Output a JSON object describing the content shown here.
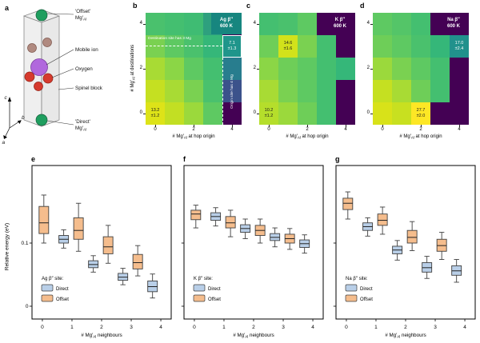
{
  "panel_a": {
    "letter": "a",
    "labels": {
      "offset_line1": "'Offset'",
      "direct_line1": "'Direct'",
      "mg_pre": "Mg′",
      "mg_sub": "Al",
      "mobile": "Mobile ion",
      "oxygen": "Oxygen",
      "spinel": "Spinel block"
    },
    "axis_labels": {
      "a": "a",
      "b": "b",
      "c": "c"
    },
    "colors": {
      "mg_al": "#1f9e5f",
      "mobile_ion": "#b168dd",
      "oxygen": "#d63a2e",
      "site": "#b08a80"
    }
  },
  "heatmap_axes": {
    "ylabel_pre": "# Mg′",
    "ylabel_sub": "Al",
    "ylabel_post": " at destinations",
    "xlabel_pre": "# Mg′",
    "xlabel_sub": "Al",
    "xlabel_post": " at hop origin",
    "xticks": [
      "0",
      "2",
      "4"
    ],
    "yticks": [
      "0",
      "2",
      "4"
    ]
  },
  "box_axes": {
    "ylabel": "Relative energy (eV)",
    "yticks": [
      {
        "value": 0,
        "label": "0"
      },
      {
        "value": 0.1,
        "label": "0.1"
      }
    ],
    "xticks": [
      "0",
      "1",
      "2",
      "3",
      "4"
    ],
    "xlabel_pre": "# Mg′",
    "xlabel_sub": "Al",
    "xlabel_post": " neighbours"
  },
  "legend": {
    "direct": "Direct",
    "offset": "Offset"
  },
  "colors": {
    "direct_fill": "#b9cfe8",
    "offset_fill": "#f5bd8d",
    "box_stroke": "#3f3f3f",
    "median": "#222222"
  },
  "chart_data": [
    {
      "type": "heatmap",
      "panel": "b",
      "badge_line1": "Ag β″",
      "badge_line2": "600 K",
      "badge_bg": "#17867f",
      "x_range": [
        0,
        4
      ],
      "y_range": [
        0,
        4
      ],
      "grid_colors": [
        [
          "#4ac16d",
          "#44bf70",
          "#3fbc73",
          "#2ea07e",
          "#440154"
        ],
        [
          "#7ad151",
          "#5ec962",
          "#4ac16d",
          "#35b779",
          "#1f958b"
        ],
        [
          "#a8db34",
          "#8bd646",
          "#5ec962",
          "#44bf70",
          "#287d8e"
        ],
        [
          "#c5e021",
          "#a8db34",
          "#7ad151",
          "#4ac16d",
          "#3b528b"
        ],
        [
          "#dde318",
          "#c2df23",
          "#9bd93c",
          "#5ec962",
          "#440154"
        ]
      ],
      "annotations": {
        "dest_label": "Destination site has 3 Mg",
        "origin_label": "Origin site has 4 Mg",
        "cells": [
          {
            "col": 4,
            "row": 3,
            "value": "7.1",
            "err": "±1.3",
            "text_color": "#ffffff",
            "highlight": true
          },
          {
            "col": 0,
            "row": 0,
            "value": "13.2",
            "err": "±1.2",
            "text_color": "#1a1a1a",
            "highlight": false
          }
        ]
      }
    },
    {
      "type": "heatmap",
      "panel": "c",
      "badge_line1": "K β″",
      "badge_line2": "600 K",
      "badge_bg": "#440154",
      "x_range": [
        0,
        4
      ],
      "y_range": [
        0,
        4
      ],
      "grid_colors": [
        [
          "#44bf70",
          "#4ac16d",
          "#5ec962",
          "#440154",
          "#440154"
        ],
        [
          "#6ece58",
          "#d2e21b",
          "#7ad151",
          "#44bf70",
          "#440154"
        ],
        [
          "#8bd646",
          "#6ece58",
          "#5ec962",
          "#44bf70",
          "#35b779"
        ],
        [
          "#a8db34",
          "#7ad151",
          "#5ec962",
          "#44bf70",
          "#440154"
        ],
        [
          "#b5de2b",
          "#9bd93c",
          "#6ece58",
          "#44bf70",
          "#440154"
        ]
      ],
      "annotations": {
        "cells": [
          {
            "col": 1,
            "row": 3,
            "value": "14.6",
            "err": "±1.6",
            "text_color": "#1a1a1a",
            "highlight": false
          },
          {
            "col": 0,
            "row": 0,
            "value": "10.2",
            "err": "±1.2",
            "text_color": "#1a1a1a",
            "highlight": false
          }
        ]
      }
    },
    {
      "type": "heatmap",
      "panel": "d",
      "badge_line1": "Na β″",
      "badge_line2": "600 K",
      "badge_bg": "#440154",
      "x_range": [
        0,
        4
      ],
      "y_range": [
        0,
        4
      ],
      "grid_colors": [
        [
          "#5ec962",
          "#54c568",
          "#44bf70",
          "#440154",
          "#440154"
        ],
        [
          "#6ece58",
          "#5ec962",
          "#4ac16d",
          "#35b779",
          "#21918c"
        ],
        [
          "#9bd93c",
          "#7ad151",
          "#5ec962",
          "#44bf70",
          "#440154"
        ],
        [
          "#c5e021",
          "#a8db34",
          "#6ece58",
          "#44bf70",
          "#440154"
        ],
        [
          "#d8e219",
          "#c8e020",
          "#fde725",
          "#440154",
          "#440154"
        ]
      ],
      "annotations": {
        "cells": [
          {
            "col": 4,
            "row": 3,
            "value": "17.0",
            "err": "±2.4",
            "text_color": "#ffffff",
            "highlight": false
          },
          {
            "col": 2,
            "row": 0,
            "value": "27.7",
            "err": "±2.0",
            "text_color": "#1a1a1a",
            "highlight": false
          }
        ]
      }
    },
    {
      "type": "boxplot",
      "panel": "e",
      "legend_title": "Ag β″ site:",
      "ylim": [
        -0.02,
        0.22
      ],
      "boxes": [
        {
          "x": 0.05,
          "series": "offset",
          "whislo": 0.1,
          "q1": 0.115,
          "med": 0.132,
          "q3": 0.158,
          "whishi": 0.176
        },
        {
          "x": 0.72,
          "series": "direct",
          "whislo": 0.092,
          "q1": 0.1,
          "med": 0.106,
          "q3": 0.112,
          "whishi": 0.121
        },
        {
          "x": 1.22,
          "series": "offset",
          "whislo": 0.087,
          "q1": 0.106,
          "med": 0.12,
          "q3": 0.14,
          "whishi": 0.163
        },
        {
          "x": 1.72,
          "series": "direct",
          "whislo": 0.054,
          "q1": 0.061,
          "med": 0.066,
          "q3": 0.072,
          "whishi": 0.08
        },
        {
          "x": 2.22,
          "series": "offset",
          "whislo": 0.068,
          "q1": 0.083,
          "med": 0.094,
          "q3": 0.11,
          "whishi": 0.128
        },
        {
          "x": 2.72,
          "series": "direct",
          "whislo": 0.034,
          "q1": 0.041,
          "med": 0.046,
          "q3": 0.052,
          "whishi": 0.06
        },
        {
          "x": 3.22,
          "series": "offset",
          "whislo": 0.048,
          "q1": 0.059,
          "med": 0.069,
          "q3": 0.082,
          "whishi": 0.096
        },
        {
          "x": 3.72,
          "series": "direct",
          "whislo": 0.013,
          "q1": 0.023,
          "med": 0.031,
          "q3": 0.04,
          "whishi": 0.051
        }
      ]
    },
    {
      "type": "boxplot",
      "panel": "f",
      "legend_title": "K β″ site:",
      "ylim": [
        -0.02,
        0.22
      ],
      "boxes": [
        {
          "x": 0.05,
          "series": "offset",
          "whislo": 0.124,
          "q1": 0.137,
          "med": 0.146,
          "q3": 0.152,
          "whishi": 0.16
        },
        {
          "x": 0.72,
          "series": "direct",
          "whislo": 0.127,
          "q1": 0.136,
          "med": 0.142,
          "q3": 0.148,
          "whishi": 0.156
        },
        {
          "x": 1.22,
          "series": "offset",
          "whislo": 0.11,
          "q1": 0.124,
          "med": 0.132,
          "q3": 0.142,
          "whishi": 0.152
        },
        {
          "x": 1.72,
          "series": "direct",
          "whislo": 0.107,
          "q1": 0.117,
          "med": 0.123,
          "q3": 0.129,
          "whishi": 0.138
        },
        {
          "x": 2.22,
          "series": "offset",
          "whislo": 0.1,
          "q1": 0.112,
          "med": 0.12,
          "q3": 0.128,
          "whishi": 0.138
        },
        {
          "x": 2.72,
          "series": "direct",
          "whislo": 0.094,
          "q1": 0.104,
          "med": 0.109,
          "q3": 0.115,
          "whishi": 0.124
        },
        {
          "x": 3.22,
          "series": "offset",
          "whislo": 0.09,
          "q1": 0.1,
          "med": 0.107,
          "q3": 0.114,
          "whishi": 0.123
        },
        {
          "x": 3.72,
          "series": "direct",
          "whislo": 0.084,
          "q1": 0.093,
          "med": 0.099,
          "q3": 0.105,
          "whishi": 0.113
        }
      ]
    },
    {
      "type": "boxplot",
      "panel": "g",
      "legend_title": "Na β″ site:",
      "ylim": [
        -0.02,
        0.22
      ],
      "boxes": [
        {
          "x": 0.05,
          "series": "offset",
          "whislo": 0.138,
          "q1": 0.153,
          "med": 0.163,
          "q3": 0.171,
          "whishi": 0.181
        },
        {
          "x": 0.72,
          "series": "direct",
          "whislo": 0.111,
          "q1": 0.12,
          "med": 0.126,
          "q3": 0.132,
          "whishi": 0.14
        },
        {
          "x": 1.22,
          "series": "offset",
          "whislo": 0.114,
          "q1": 0.128,
          "med": 0.136,
          "q3": 0.146,
          "whishi": 0.157
        },
        {
          "x": 1.72,
          "series": "direct",
          "whislo": 0.073,
          "q1": 0.083,
          "med": 0.089,
          "q3": 0.095,
          "whishi": 0.104
        },
        {
          "x": 2.22,
          "series": "offset",
          "whislo": 0.088,
          "q1": 0.1,
          "med": 0.109,
          "q3": 0.12,
          "whishi": 0.134
        },
        {
          "x": 2.72,
          "series": "direct",
          "whislo": 0.044,
          "q1": 0.054,
          "med": 0.061,
          "q3": 0.069,
          "whishi": 0.079
        },
        {
          "x": 3.22,
          "series": "offset",
          "whislo": 0.074,
          "q1": 0.087,
          "med": 0.096,
          "q3": 0.106,
          "whishi": 0.117
        },
        {
          "x": 3.72,
          "series": "direct",
          "whislo": 0.038,
          "q1": 0.049,
          "med": 0.056,
          "q3": 0.064,
          "whishi": 0.074
        }
      ]
    }
  ]
}
